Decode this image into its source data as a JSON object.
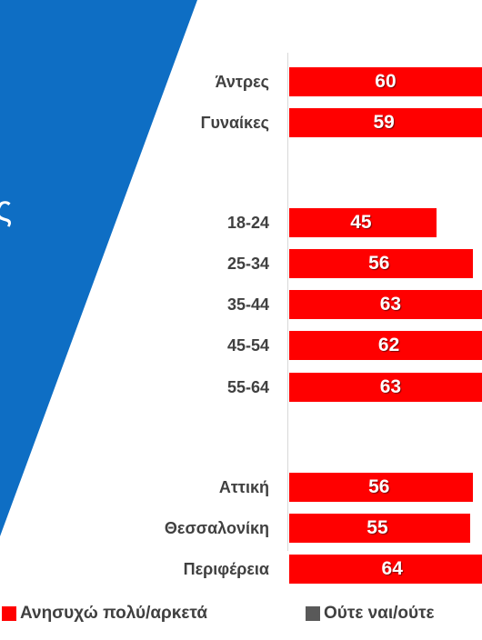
{
  "panel": {
    "color": "#0e6ec4",
    "glyph": "ς"
  },
  "chart_data": {
    "type": "bar",
    "orientation": "horizontal",
    "stacked": true,
    "groups": [
      {
        "categories": [
          "Άντρες",
          "Γυναίκες"
        ],
        "values": [
          60,
          59
        ]
      },
      {
        "categories": [
          "18-24",
          "25-34",
          "35-44",
          "45-54",
          "55-64"
        ],
        "values": [
          45,
          56,
          63,
          62,
          63
        ]
      },
      {
        "categories": [
          "Αττική",
          "Θεσσαλονίκη",
          "Περιφέρεια"
        ],
        "values": [
          56,
          55,
          64
        ]
      }
    ],
    "series": [
      {
        "name": "Ανησυχώ πολύ/αρκετά",
        "color": "#ff0000"
      },
      {
        "name": "Ούτε ναι/ούτε",
        "color": "#595959"
      }
    ],
    "xlim": [
      0,
      100
    ],
    "legend_position": "bottom"
  }
}
